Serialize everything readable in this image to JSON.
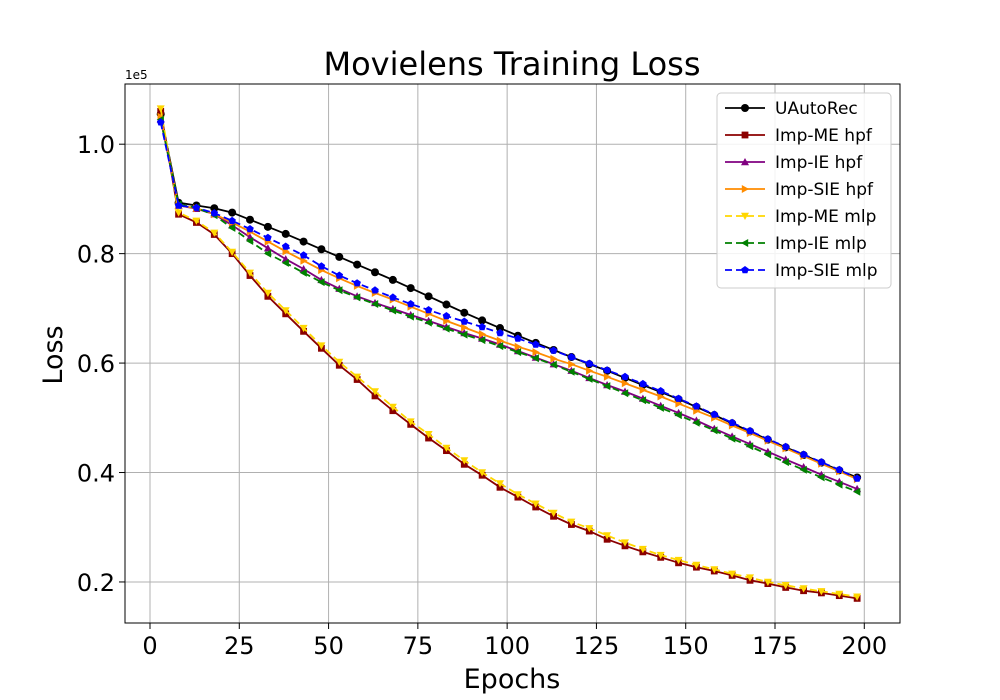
{
  "chart_data": {
    "type": "line",
    "title": "Movielens Training Loss",
    "xlabel": "Epochs",
    "ylabel": "Loss",
    "y_offset_label": "1e5",
    "xlim": [
      -7,
      210
    ],
    "ylim": [
      0.125,
      1.11
    ],
    "xticks": [
      0,
      25,
      50,
      75,
      100,
      125,
      150,
      175,
      200
    ],
    "yticks": [
      0.2,
      0.4,
      0.6,
      0.8
    ],
    "ytick_labels": [
      "0.2",
      "0.4",
      "0.6",
      "0.8"
    ],
    "ytick_1": 1.0,
    "ytick_1_label": "1.0",
    "grid": true,
    "legend_position": "top-right",
    "series": [
      {
        "name": "UAutoRec",
        "color": "#000000",
        "marker": "circle",
        "dash": "solid",
        "x": [
          3,
          8,
          13,
          18,
          23,
          28,
          33,
          38,
          43,
          48,
          53,
          58,
          63,
          68,
          73,
          78,
          83,
          88,
          93,
          98,
          103,
          108,
          113,
          118,
          123,
          128,
          133,
          138,
          143,
          148,
          153,
          158,
          163,
          168,
          173,
          178,
          183,
          188,
          193,
          198
        ],
        "values": [
          1.055,
          0.893,
          0.888,
          0.883,
          0.875,
          0.862,
          0.849,
          0.836,
          0.822,
          0.808,
          0.794,
          0.78,
          0.766,
          0.752,
          0.737,
          0.722,
          0.707,
          0.692,
          0.678,
          0.664,
          0.65,
          0.637,
          0.624,
          0.611,
          0.598,
          0.586,
          0.573,
          0.56,
          0.547,
          0.534,
          0.52,
          0.505,
          0.49,
          0.475,
          0.46,
          0.446,
          0.432,
          0.418,
          0.404,
          0.391
        ]
      },
      {
        "name": "Imp-ME hpf",
        "color": "#8b0000",
        "marker": "square",
        "dash": "solid",
        "x": [
          3,
          8,
          13,
          18,
          23,
          28,
          33,
          38,
          43,
          48,
          53,
          58,
          63,
          68,
          73,
          78,
          83,
          88,
          93,
          98,
          103,
          108,
          113,
          118,
          123,
          128,
          133,
          138,
          143,
          148,
          153,
          158,
          163,
          168,
          173,
          178,
          183,
          188,
          193,
          198
        ],
        "values": [
          1.06,
          0.872,
          0.857,
          0.835,
          0.8,
          0.76,
          0.722,
          0.69,
          0.658,
          0.627,
          0.596,
          0.57,
          0.54,
          0.513,
          0.488,
          0.463,
          0.44,
          0.415,
          0.395,
          0.373,
          0.355,
          0.337,
          0.32,
          0.305,
          0.293,
          0.278,
          0.266,
          0.255,
          0.245,
          0.235,
          0.227,
          0.22,
          0.212,
          0.203,
          0.197,
          0.19,
          0.184,
          0.18,
          0.175,
          0.17
        ]
      },
      {
        "name": "Imp-IE hpf",
        "color": "#800080",
        "marker": "triangle-up",
        "dash": "solid",
        "x": [
          3,
          8,
          13,
          18,
          23,
          28,
          33,
          38,
          43,
          48,
          53,
          58,
          63,
          68,
          73,
          78,
          83,
          88,
          93,
          98,
          103,
          108,
          113,
          118,
          123,
          128,
          133,
          138,
          143,
          148,
          153,
          158,
          163,
          168,
          173,
          178,
          183,
          188,
          193,
          198
        ],
        "values": [
          1.045,
          0.888,
          0.882,
          0.872,
          0.852,
          0.83,
          0.81,
          0.79,
          0.772,
          0.752,
          0.736,
          0.722,
          0.71,
          0.699,
          0.688,
          0.677,
          0.666,
          0.655,
          0.645,
          0.634,
          0.622,
          0.61,
          0.598,
          0.586,
          0.573,
          0.56,
          0.548,
          0.535,
          0.522,
          0.509,
          0.495,
          0.48,
          0.466,
          0.452,
          0.438,
          0.424,
          0.41,
          0.396,
          0.383,
          0.37
        ]
      },
      {
        "name": "Imp-SIE hpf",
        "color": "#ff8c00",
        "marker": "triangle-right",
        "dash": "solid",
        "x": [
          3,
          8,
          13,
          18,
          23,
          28,
          33,
          38,
          43,
          48,
          53,
          58,
          63,
          68,
          73,
          78,
          83,
          88,
          93,
          98,
          103,
          108,
          113,
          118,
          123,
          128,
          133,
          138,
          143,
          148,
          153,
          158,
          163,
          168,
          173,
          178,
          183,
          188,
          193,
          198
        ],
        "values": [
          1.05,
          0.888,
          0.883,
          0.872,
          0.857,
          0.84,
          0.822,
          0.804,
          0.787,
          0.77,
          0.755,
          0.741,
          0.728,
          0.716,
          0.703,
          0.69,
          0.677,
          0.665,
          0.653,
          0.641,
          0.63,
          0.62,
          0.608,
          0.598,
          0.586,
          0.575,
          0.563,
          0.551,
          0.539,
          0.526,
          0.513,
          0.5,
          0.486,
          0.472,
          0.458,
          0.444,
          0.43,
          0.416,
          0.402,
          0.388
        ]
      },
      {
        "name": "Imp-ME mlp",
        "color": "#ffd700",
        "marker": "triangle-down",
        "dash": "dashed",
        "x": [
          3,
          8,
          13,
          18,
          23,
          28,
          33,
          38,
          43,
          48,
          53,
          58,
          63,
          68,
          73,
          78,
          83,
          88,
          93,
          98,
          103,
          108,
          113,
          118,
          123,
          128,
          133,
          138,
          143,
          148,
          153,
          158,
          163,
          168,
          173,
          178,
          183,
          188,
          193,
          198
        ],
        "values": [
          1.065,
          0.875,
          0.86,
          0.838,
          0.803,
          0.765,
          0.728,
          0.696,
          0.664,
          0.632,
          0.602,
          0.575,
          0.548,
          0.52,
          0.493,
          0.47,
          0.445,
          0.422,
          0.4,
          0.38,
          0.36,
          0.343,
          0.326,
          0.31,
          0.298,
          0.285,
          0.272,
          0.26,
          0.249,
          0.24,
          0.231,
          0.223,
          0.215,
          0.208,
          0.2,
          0.194,
          0.188,
          0.183,
          0.178,
          0.173
        ]
      },
      {
        "name": "Imp-IE mlp",
        "color": "#008000",
        "marker": "triangle-left",
        "dash": "dashed",
        "x": [
          3,
          8,
          13,
          18,
          23,
          28,
          33,
          38,
          43,
          48,
          53,
          58,
          63,
          68,
          73,
          78,
          83,
          88,
          93,
          98,
          103,
          108,
          113,
          118,
          123,
          128,
          133,
          138,
          143,
          148,
          153,
          158,
          163,
          168,
          173,
          178,
          183,
          188,
          193,
          198
        ],
        "values": [
          1.045,
          0.89,
          0.884,
          0.87,
          0.847,
          0.823,
          0.8,
          0.783,
          0.765,
          0.748,
          0.733,
          0.72,
          0.708,
          0.696,
          0.685,
          0.674,
          0.663,
          0.652,
          0.642,
          0.631,
          0.62,
          0.609,
          0.597,
          0.584,
          0.571,
          0.558,
          0.545,
          0.532,
          0.518,
          0.505,
          0.491,
          0.477,
          0.462,
          0.448,
          0.433,
          0.419,
          0.405,
          0.391,
          0.378,
          0.365
        ]
      },
      {
        "name": "Imp-SIE mlp",
        "color": "#0000ff",
        "marker": "pentagon",
        "dash": "dashed",
        "x": [
          3,
          8,
          13,
          18,
          23,
          28,
          33,
          38,
          43,
          48,
          53,
          58,
          63,
          68,
          73,
          78,
          83,
          88,
          93,
          98,
          103,
          108,
          113,
          118,
          123,
          128,
          133,
          138,
          143,
          148,
          153,
          158,
          163,
          168,
          173,
          178,
          183,
          188,
          193,
          198
        ],
        "values": [
          1.04,
          0.888,
          0.884,
          0.874,
          0.86,
          0.845,
          0.829,
          0.813,
          0.797,
          0.777,
          0.76,
          0.746,
          0.733,
          0.72,
          0.708,
          0.697,
          0.686,
          0.676,
          0.666,
          0.655,
          0.645,
          0.634,
          0.623,
          0.611,
          0.599,
          0.587,
          0.575,
          0.562,
          0.549,
          0.535,
          0.521,
          0.506,
          0.491,
          0.476,
          0.461,
          0.447,
          0.433,
          0.419,
          0.405,
          0.389
        ]
      }
    ]
  }
}
